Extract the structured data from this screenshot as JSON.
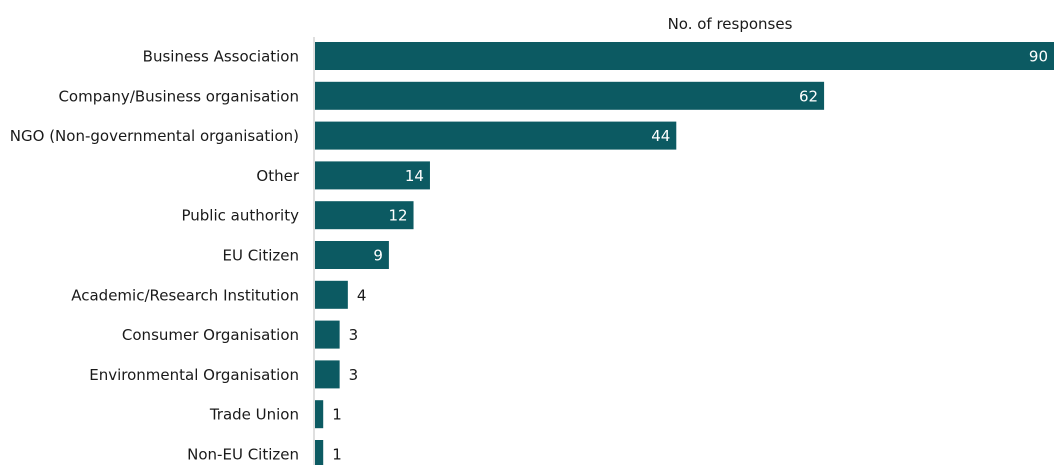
{
  "chart_data": {
    "type": "bar",
    "orientation": "horizontal",
    "title": "No. of responses",
    "categories": [
      "Business Association",
      "Company/Business organisation",
      "NGO (Non-governmental organisation)",
      "Other",
      "Public authority",
      "EU Citizen",
      "Academic/Research Institution",
      "Consumer Organisation",
      "Environmental Organisation",
      "Trade Union",
      "Non-EU Citizen"
    ],
    "values": [
      90,
      62,
      44,
      14,
      12,
      9,
      4,
      3,
      3,
      1,
      1
    ],
    "xlim": [
      0,
      90
    ],
    "grid": false,
    "legend": "none",
    "bar_color": "#0c5a62",
    "axis_color": "#bfbfbf",
    "label_inside_color": "#ffffff",
    "label_outside_color": "#1a1a1a"
  }
}
